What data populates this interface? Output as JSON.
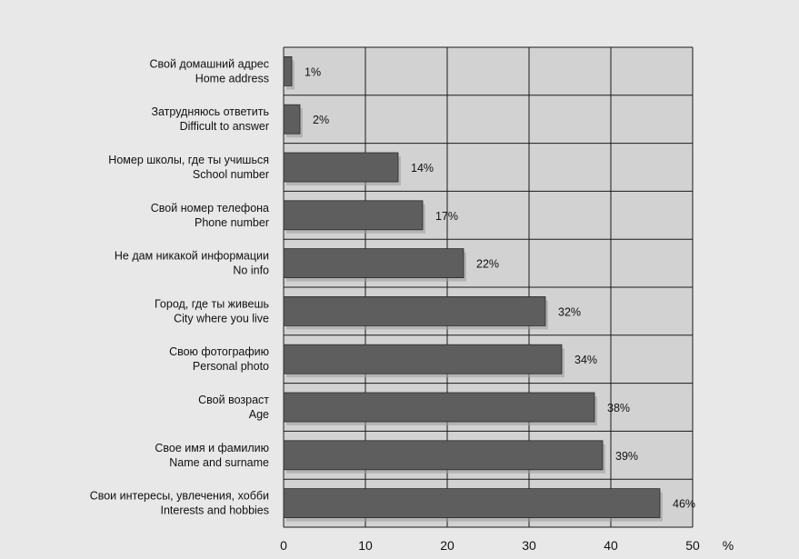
{
  "chart_data": {
    "type": "bar",
    "orientation": "horizontal",
    "categories": [
      {
        "ru": "Свой домашний адрес",
        "en": "Home address"
      },
      {
        "ru": "Затрудняюсь ответить",
        "en": "Difficult to answer"
      },
      {
        "ru": "Номер школы, где ты учишься",
        "en": "School number"
      },
      {
        "ru": "Свой номер телефона",
        "en": "Phone number"
      },
      {
        "ru": "Не дам никакой информации",
        "en": "No info"
      },
      {
        "ru": "Город, где ты живешь",
        "en": "City where you live"
      },
      {
        "ru": "Свою фотографию",
        "en": "Personal photo"
      },
      {
        "ru": "Свой возраст",
        "en": "Age"
      },
      {
        "ru": "Свое имя и фамилию",
        "en": "Name and surname"
      },
      {
        "ru": "Свои интересы, увлечения, хобби",
        "en": "Interests and hobbies"
      }
    ],
    "values": [
      1,
      2,
      14,
      17,
      22,
      32,
      34,
      38,
      39,
      46
    ],
    "value_labels": [
      "1%",
      "2%",
      "14%",
      "17%",
      "22%",
      "32%",
      "34%",
      "38%",
      "39%",
      "46%"
    ],
    "xlim": [
      0,
      50
    ],
    "xticks": [
      0,
      10,
      20,
      30,
      40,
      50
    ],
    "xlabel": "%",
    "grid": true,
    "colors": {
      "plot_bg": "#d2d2d2",
      "grid": "#1a1a1a",
      "bar_fill": "#5e5e5e",
      "bar_shadow": "#9a9a9a"
    }
  }
}
